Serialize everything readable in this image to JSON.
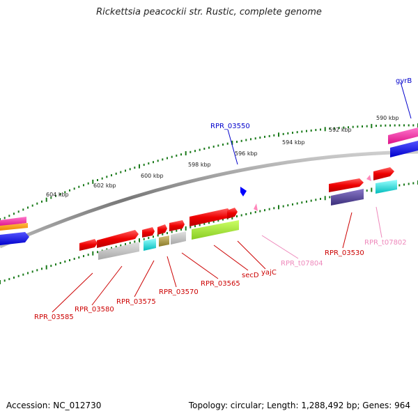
{
  "title": "Rickettsia peacockii str. Rustic, complete genome",
  "footer": {
    "accession": "Accession: NC_012730",
    "summary": "Topology: circular; Length: 1,288,492 bp; Genes: 964"
  },
  "ruler_labels": [
    "590 kbp",
    "592 kbp",
    "594 kbp",
    "596 kbp",
    "598 kbp",
    "600 kbp",
    "602 kbp",
    "604 kbp"
  ],
  "gene_labels": [
    {
      "text": "gyrB",
      "color": "#0000cc"
    },
    {
      "text": "RPR_03550",
      "color": "#0000cc"
    },
    {
      "text": "RPR_03585",
      "color": "#cc0000"
    },
    {
      "text": "RPR_03580",
      "color": "#cc0000"
    },
    {
      "text": "RPR_03575",
      "color": "#cc0000"
    },
    {
      "text": "RPR_03570",
      "color": "#cc0000"
    },
    {
      "text": "RPR_03565",
      "color": "#cc0000"
    },
    {
      "text": "secD",
      "color": "#cc0000"
    },
    {
      "text": "yajC",
      "color": "#cc0000"
    },
    {
      "text": "RPR_t07804",
      "color": "#ee88bb"
    },
    {
      "text": "RPR_03530",
      "color": "#cc0000"
    },
    {
      "text": "RPR_t07802",
      "color": "#ee88bb"
    }
  ],
  "colors": {
    "backbone": "#888888",
    "ruler_ticks": "#1a7a1a",
    "cds_forward": "#ff0000",
    "trna": "#ff88bb",
    "highlight_blue": "#0000ff"
  }
}
